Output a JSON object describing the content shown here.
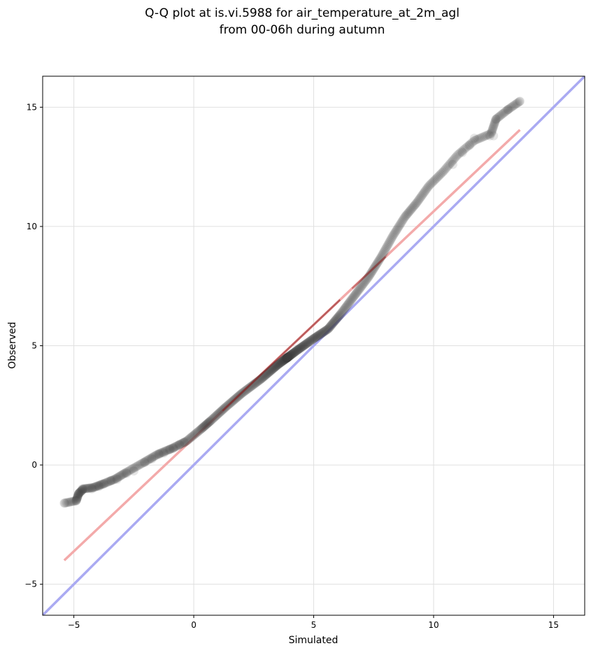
{
  "chart_data": {
    "type": "scatter",
    "title_lines": [
      "Q-Q plot at is.vi.5988 for air_temperature_at_2m_agl",
      "from 00-06h during autumn"
    ],
    "xlabel": "Simulated",
    "ylabel": "Observed",
    "xlim": [
      -6.3,
      16.3
    ],
    "ylim": [
      -6.3,
      16.3
    ],
    "x_ticks": [
      -5,
      0,
      5,
      10,
      15
    ],
    "y_ticks": [
      -5,
      0,
      5,
      10,
      15
    ],
    "x_tick_labels": [
      "−5",
      "0",
      "5",
      "10",
      "15"
    ],
    "y_tick_labels": [
      "−5",
      "0",
      "5",
      "10",
      "15"
    ],
    "grid": true,
    "colors": {
      "points": "#404040",
      "identity_line": "#aaaaf2",
      "fit_line": "#f3aaaa",
      "fit_line_dense": "#8b1a1a",
      "grid": "#e0e0e0"
    },
    "identity_line": {
      "x": [
        -6.3,
        16.3
      ],
      "y": [
        -6.3,
        16.3
      ]
    },
    "fit_line": {
      "x": [
        -5.4,
        13.6
      ],
      "y": [
        -4.0,
        14.05
      ]
    },
    "anchors": [
      [
        -5.4,
        -1.6
      ],
      [
        -4.9,
        -1.5
      ],
      [
        -4.8,
        -1.2
      ],
      [
        -4.6,
        -1.0
      ],
      [
        -4.2,
        -0.95
      ],
      [
        -3.8,
        -0.8
      ],
      [
        -3.3,
        -0.6
      ],
      [
        -2.8,
        -0.3
      ],
      [
        -2.1,
        0.1
      ],
      [
        -1.5,
        0.45
      ],
      [
        -0.9,
        0.7
      ],
      [
        -0.3,
        1.0
      ],
      [
        0.3,
        1.5
      ],
      [
        0.7,
        1.85
      ],
      [
        1.3,
        2.4
      ],
      [
        2.0,
        3.0
      ],
      [
        2.8,
        3.6
      ],
      [
        3.5,
        4.2
      ],
      [
        4.3,
        4.8
      ],
      [
        5.0,
        5.3
      ],
      [
        5.6,
        5.7
      ],
      [
        6.1,
        6.3
      ],
      [
        6.7,
        7.1
      ],
      [
        7.3,
        7.9
      ],
      [
        7.8,
        8.7
      ],
      [
        8.3,
        9.6
      ],
      [
        8.8,
        10.4
      ],
      [
        9.3,
        11.0
      ],
      [
        9.8,
        11.7
      ],
      [
        10.4,
        12.3
      ],
      [
        11.0,
        13.0
      ],
      [
        11.7,
        13.6
      ],
      [
        12.4,
        13.9
      ],
      [
        12.6,
        14.5
      ],
      [
        13.1,
        14.9
      ],
      [
        13.6,
        15.25
      ]
    ],
    "point_count": 640,
    "tail_points": [
      [
        -5.4,
        -1.6
      ],
      [
        -4.9,
        -1.5
      ],
      [
        -4.8,
        -1.2
      ],
      [
        -4.65,
        -1.0
      ],
      [
        -4.25,
        -1.0
      ],
      [
        -3.95,
        -0.9
      ],
      [
        -3.75,
        -0.8
      ],
      [
        -3.45,
        -0.65
      ],
      [
        -3.2,
        -0.6
      ],
      [
        -2.8,
        -0.35
      ],
      [
        -2.5,
        -0.25
      ],
      [
        -2.05,
        0.1
      ],
      [
        -1.75,
        0.25
      ],
      [
        -1.45,
        0.45
      ],
      [
        -1.25,
        0.5
      ],
      [
        -1.0,
        0.65
      ],
      [
        -0.85,
        0.7
      ],
      [
        -0.6,
        0.85
      ],
      [
        -0.4,
        0.95
      ],
      [
        11.2,
        13.1
      ],
      [
        11.7,
        13.7
      ],
      [
        12.35,
        13.8
      ],
      [
        12.6,
        14.5
      ],
      [
        12.5,
        13.8
      ],
      [
        13.1,
        14.9
      ],
      [
        13.6,
        15.25
      ],
      [
        10.8,
        12.6
      ],
      [
        11.5,
        13.4
      ]
    ]
  }
}
